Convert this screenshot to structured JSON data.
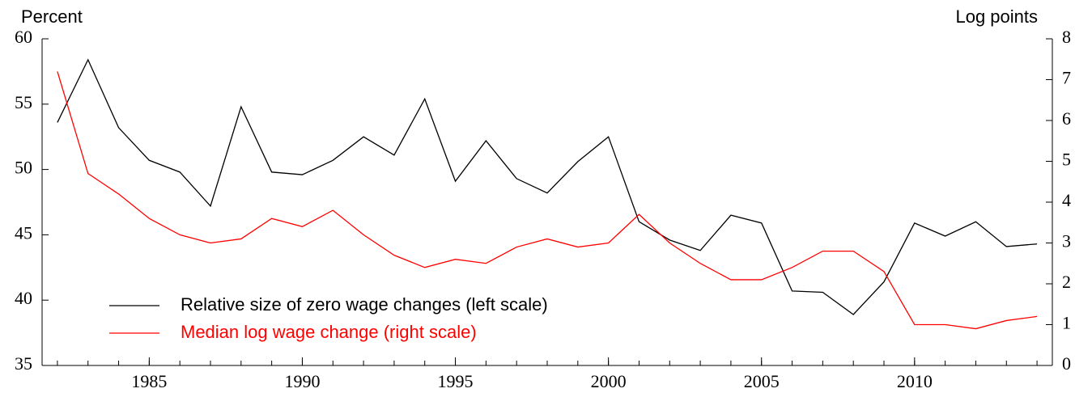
{
  "chart_data": {
    "type": "line",
    "y_label": "Percent",
    "y2_label": "Log points",
    "x": [
      1982,
      1983,
      1984,
      1985,
      1986,
      1987,
      1988,
      1989,
      1990,
      1991,
      1992,
      1993,
      1994,
      1995,
      1996,
      1997,
      1998,
      1999,
      2000,
      2001,
      2002,
      2003,
      2004,
      2005,
      2006,
      2007,
      2008,
      2009,
      2010,
      2011,
      2012,
      2013,
      2014
    ],
    "series": [
      {
        "name": "Relative size of zero wage changes (left scale)",
        "color": "#000000",
        "values": [
          53.6,
          58.4,
          53.2,
          50.7,
          49.8,
          47.2,
          54.8,
          49.8,
          49.6,
          50.7,
          52.5,
          51.1,
          55.4,
          49.1,
          52.2,
          49.3,
          48.2,
          50.6,
          52.5,
          46.0,
          44.6,
          43.8,
          46.5,
          45.9,
          40.7,
          40.6,
          38.9,
          41.4,
          45.9,
          44.9,
          46.0,
          44.1,
          44.3
        ]
      },
      {
        "name": "Median log wage change (right scale)",
        "color": "#ff0000",
        "axis": "y2",
        "values": [
          7.2,
          4.7,
          4.2,
          3.6,
          3.2,
          3.0,
          3.1,
          3.6,
          3.4,
          3.8,
          3.2,
          2.7,
          2.4,
          2.6,
          2.5,
          2.9,
          3.1,
          2.9,
          3.0,
          3.7,
          3.0,
          2.5,
          2.1,
          2.1,
          2.4,
          2.8,
          2.8,
          2.3,
          1.0,
          1.0,
          0.9,
          1.1,
          1.2
        ]
      }
    ],
    "xlim": [
      1981.5,
      2014.5
    ],
    "xticks": [
      1985,
      1990,
      1995,
      2000,
      2005,
      2010
    ],
    "ylim": [
      35,
      60
    ],
    "yticks": [
      35,
      40,
      45,
      50,
      55,
      60
    ],
    "y2lim": [
      0,
      8
    ],
    "y2ticks": [
      0,
      1,
      2,
      3,
      4,
      5,
      6,
      7,
      8
    ],
    "legend": "lower left"
  }
}
